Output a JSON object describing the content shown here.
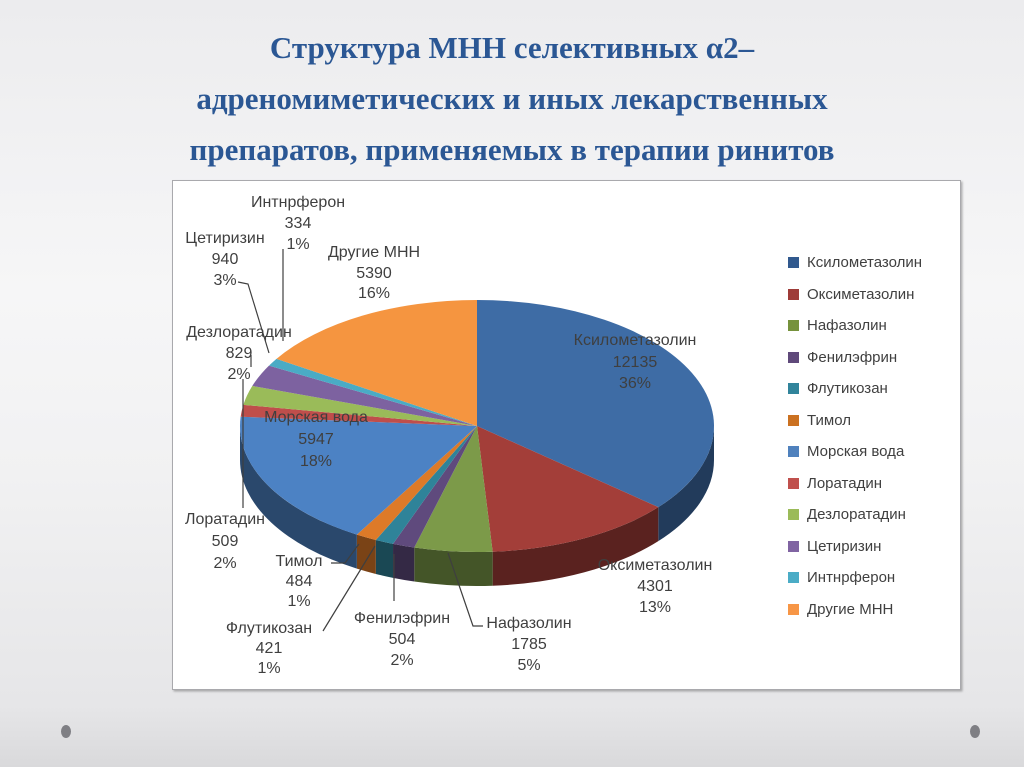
{
  "slide": {
    "title": "Структура МНН селективных α2–\nадреномиметических  и иных лекарственных\nпрепаратов, применяемых в терапии ринитов",
    "title_color": "#2B5794"
  },
  "chart_data": {
    "type": "pie",
    "is_3d": true,
    "start_angle_deg": 0,
    "direction": "clockwise",
    "legend_position": "right",
    "label_format": "name, value, percent",
    "items": [
      {
        "label": "Ксилометазолин",
        "value": 12135,
        "pct": "36%",
        "color": "#3E6CA5",
        "legend_color": "#31598E"
      },
      {
        "label": "Оксиметазолин",
        "value": 4301,
        "pct": "13%",
        "color": "#A33E39",
        "legend_color": "#9E3B38"
      },
      {
        "label": "Нафазолин",
        "value": 1785,
        "pct": "5%",
        "color": "#7C9A49",
        "legend_color": "#76923C"
      },
      {
        "label": "Фенилэфрин",
        "value": 504,
        "pct": "2%",
        "color": "#5F4A7D",
        "legend_color": "#5F497A"
      },
      {
        "label": "Флутикозан",
        "value": 421,
        "pct": "1%",
        "color": "#2F8399",
        "legend_color": "#31849B"
      },
      {
        "label": "Тимол",
        "value": 484,
        "pct": "1%",
        "color": "#DD7A28",
        "legend_color": "#CB7121"
      },
      {
        "label": "Морская вода",
        "value": 5947,
        "pct": "18%",
        "color": "#4C82C4",
        "legend_color": "#4F81BD"
      },
      {
        "label": "Лоратадин",
        "value": 509,
        "pct": "2%",
        "color": "#BF4E4B",
        "legend_color": "#C0504D"
      },
      {
        "label": "Дезлоратадин",
        "value": 829,
        "pct": "2%",
        "color": "#9ABB59",
        "legend_color": "#9BBB59"
      },
      {
        "label": "Цетиризин",
        "value": 940,
        "pct": "3%",
        "color": "#7D62A0",
        "legend_color": "#8064A2"
      },
      {
        "label": "Интнрферон",
        "value": 334,
        "pct": "1%",
        "color": "#4AABC5",
        "legend_color": "#4BACC6"
      },
      {
        "label": "Другие МНН",
        "value": 5390,
        "pct": "16%",
        "color": "#F59540",
        "legend_color": "#F79646"
      }
    ]
  }
}
